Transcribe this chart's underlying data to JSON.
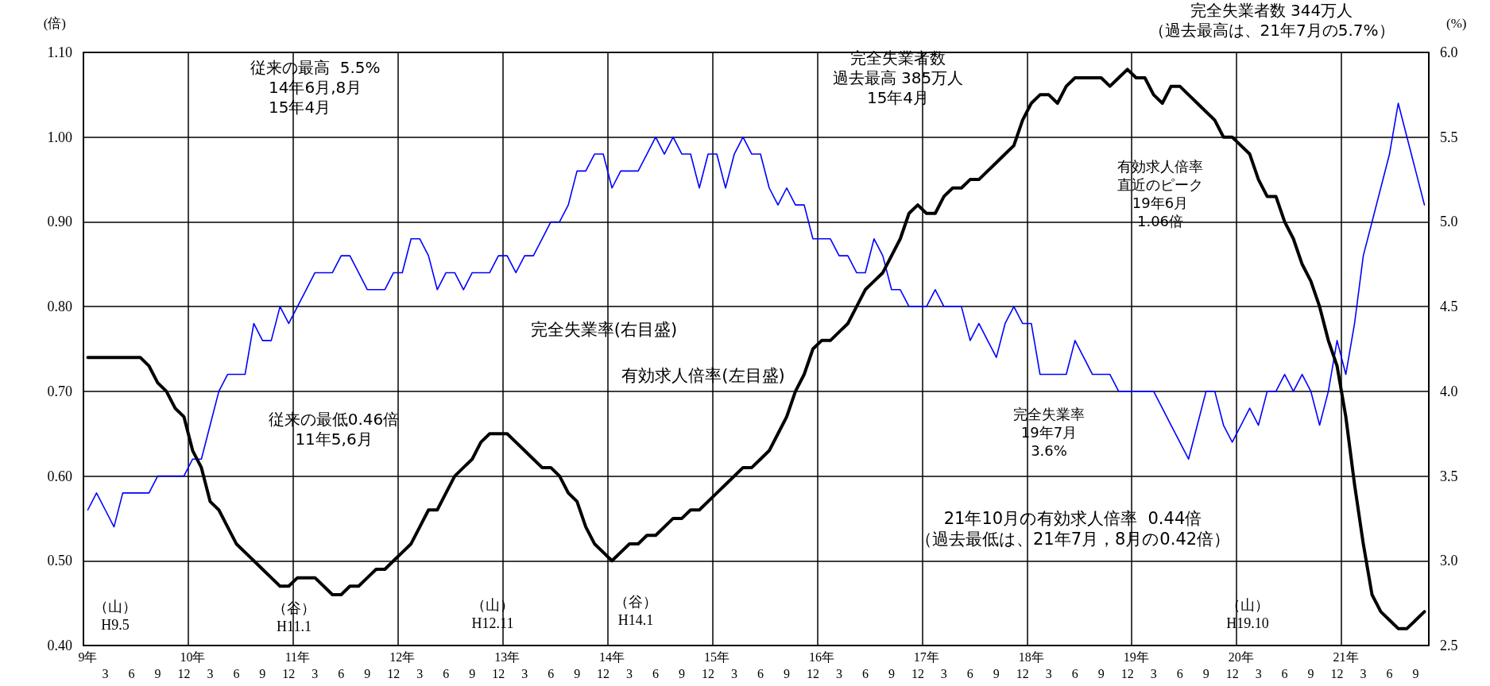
{
  "chart_data": {
    "type": "line",
    "categories": [
      "9年",
      null,
      "3",
      null,
      null,
      "6",
      null,
      null,
      "9",
      null,
      null,
      "12",
      "10年",
      null,
      "3",
      null,
      null,
      "6",
      null,
      null,
      "9",
      null,
      null,
      "12",
      "11年",
      null,
      "3",
      null,
      null,
      "6",
      null,
      null,
      "9",
      null,
      null,
      "12",
      "12年",
      null,
      "3",
      null,
      null,
      "6",
      null,
      null,
      "9",
      null,
      null,
      "12",
      "13年",
      null,
      "3",
      null,
      null,
      "6",
      null,
      null,
      "9",
      null,
      null,
      "12",
      "14年",
      null,
      "3",
      null,
      null,
      "6",
      null,
      null,
      "9",
      null,
      null,
      "12",
      "15年",
      null,
      "3",
      null,
      null,
      "6",
      null,
      null,
      "9",
      null,
      null,
      "12",
      "16年",
      null,
      "3",
      null,
      null,
      "6",
      null,
      null,
      "9",
      null,
      null,
      "12",
      "17年",
      null,
      "3",
      null,
      null,
      "6",
      null,
      null,
      "9",
      null,
      null,
      "12",
      "18年",
      null,
      "3",
      null,
      null,
      "6",
      null,
      null,
      "9",
      null,
      null,
      "12",
      "19年",
      null,
      "3",
      null,
      null,
      "6",
      null,
      null,
      "9",
      null,
      null,
      "12",
      "20年",
      null,
      "3",
      null,
      null,
      "6",
      null,
      null,
      "9",
      null,
      null,
      "12",
      "21年",
      null,
      "3",
      null,
      null,
      "6",
      null,
      null,
      "9",
      null
    ],
    "series": [
      {
        "name": "完全失業率(右目盛)",
        "color": "#0000ff",
        "axis": "y2",
        "values": [
          3.3,
          3.4,
          3.3,
          3.2,
          3.4,
          3.4,
          3.4,
          3.4,
          3.5,
          3.5,
          3.5,
          3.5,
          3.6,
          3.6,
          3.8,
          4.0,
          4.1,
          4.1,
          4.1,
          4.4,
          4.3,
          4.3,
          4.5,
          4.4,
          4.5,
          4.6,
          4.7,
          4.7,
          4.7,
          4.8,
          4.8,
          4.7,
          4.6,
          4.6,
          4.6,
          4.7,
          4.7,
          4.9,
          4.9,
          4.8,
          4.6,
          4.7,
          4.7,
          4.6,
          4.7,
          4.7,
          4.7,
          4.8,
          4.8,
          4.7,
          4.8,
          4.8,
          4.9,
          5.0,
          5.0,
          5.1,
          5.3,
          5.3,
          5.4,
          5.4,
          5.2,
          5.3,
          5.3,
          5.3,
          5.4,
          5.5,
          5.4,
          5.5,
          5.4,
          5.4,
          5.2,
          5.4,
          5.4,
          5.2,
          5.4,
          5.5,
          5.4,
          5.4,
          5.2,
          5.1,
          5.2,
          5.1,
          5.1,
          4.9,
          4.9,
          4.9,
          4.8,
          4.8,
          4.7,
          4.7,
          4.9,
          4.8,
          4.6,
          4.6,
          4.5,
          4.5,
          4.5,
          4.6,
          4.5,
          4.5,
          4.5,
          4.3,
          4.4,
          4.3,
          4.2,
          4.4,
          4.5,
          4.4,
          4.4,
          4.1,
          4.1,
          4.1,
          4.1,
          4.3,
          4.2,
          4.1,
          4.1,
          4.1,
          4.0,
          4.0,
          4.0,
          4.0,
          4.0,
          3.9,
          3.8,
          3.7,
          3.6,
          3.8,
          4.0,
          4.0,
          3.8,
          3.7,
          3.8,
          3.9,
          3.8,
          4.0,
          4.0,
          4.1,
          4.0,
          4.1,
          4.0,
          3.8,
          4.0,
          4.3,
          4.1,
          4.4,
          4.8,
          5.0,
          5.2,
          5.4,
          5.7,
          5.5,
          5.3,
          5.1
        ]
      },
      {
        "name": "有効求人倍率(左目盛)",
        "color": "#000000",
        "values": [
          0.74,
          0.74,
          0.74,
          0.74,
          0.74,
          0.74,
          0.74,
          0.73,
          0.71,
          0.7,
          0.68,
          0.67,
          0.63,
          0.61,
          0.57,
          0.56,
          0.54,
          0.52,
          0.51,
          0.5,
          0.49,
          0.48,
          0.47,
          0.47,
          0.48,
          0.48,
          0.48,
          0.47,
          0.46,
          0.46,
          0.47,
          0.47,
          0.48,
          0.49,
          0.49,
          0.5,
          0.51,
          0.52,
          0.54,
          0.56,
          0.56,
          0.58,
          0.6,
          0.61,
          0.62,
          0.64,
          0.65,
          0.65,
          0.65,
          0.64,
          0.63,
          0.62,
          0.61,
          0.61,
          0.6,
          0.58,
          0.57,
          0.54,
          0.52,
          0.51,
          0.5,
          0.51,
          0.52,
          0.52,
          0.53,
          0.53,
          0.54,
          0.55,
          0.55,
          0.56,
          0.56,
          0.57,
          0.58,
          0.59,
          0.6,
          0.61,
          0.61,
          0.62,
          0.63,
          0.65,
          0.67,
          0.7,
          0.72,
          0.75,
          0.76,
          0.76,
          0.77,
          0.78,
          0.8,
          0.82,
          0.83,
          0.84,
          0.86,
          0.88,
          0.91,
          0.92,
          0.91,
          0.91,
          0.93,
          0.94,
          0.94,
          0.95,
          0.95,
          0.96,
          0.97,
          0.98,
          0.99,
          1.02,
          1.04,
          1.05,
          1.05,
          1.04,
          1.06,
          1.07,
          1.07,
          1.07,
          1.07,
          1.06,
          1.07,
          1.08,
          1.07,
          1.07,
          1.05,
          1.04,
          1.06,
          1.06,
          1.05,
          1.04,
          1.03,
          1.02,
          1.0,
          1.0,
          0.99,
          0.98,
          0.95,
          0.93,
          0.93,
          0.9,
          0.88,
          0.85,
          0.83,
          0.8,
          0.76,
          0.73,
          0.67,
          0.59,
          0.52,
          0.46,
          0.44,
          0.43,
          0.42,
          0.42,
          0.43,
          0.44
        ]
      }
    ],
    "ylabel": "(倍)",
    "y2label": "(%)",
    "ylim": [
      0.4,
      1.1
    ],
    "yticks": [
      {
        "value": 0.4,
        "label": "0.40"
      },
      {
        "value": 0.5,
        "label": "0.50"
      },
      {
        "value": 0.6,
        "label": "0.60"
      },
      {
        "value": 0.7,
        "label": "0.70"
      },
      {
        "value": 0.8,
        "label": "0.80"
      },
      {
        "value": 0.9,
        "label": "0.90"
      },
      {
        "value": 1.0,
        "label": "1.00"
      },
      {
        "value": 1.1,
        "label": "1.10"
      }
    ],
    "y2lim": [
      2.5,
      6.0
    ],
    "y2ticks": [
      2.5,
      {
        "value": 3,
        "label": "3.0"
      },
      3.5,
      {
        "value": 4,
        "label": "4.0"
      },
      4.5,
      {
        "value": 5,
        "label": "5.0"
      },
      5.5,
      {
        "value": 6,
        "label": "6.0"
      }
    ],
    "grid": true,
    "annotations": [
      "完全失業者数 344万人",
      "（過去最高は、21年7月の5.7%）",
      "従来の最高  5.5%",
      "14年6月,8月",
      "15年4月",
      "完全失業者数",
      "過去最高 385万人",
      "15年4月",
      "有効求人倍率",
      "直近のピーク",
      "19年6月",
      "1.06倍",
      "完全失業率",
      "19年7月",
      "3.6%",
      "従来の最低0.46倍",
      "11年5,6月",
      "21年10月の有効求人倍率  0.44倍",
      "（過去最低は、21年7月，8月の0.42倍）",
      "（山）\nH9.5",
      "（谷）\nH11.1",
      "（山）\nH12.11",
      "（谷）\nH14.1",
      "（山）\nH19.10"
    ]
  }
}
